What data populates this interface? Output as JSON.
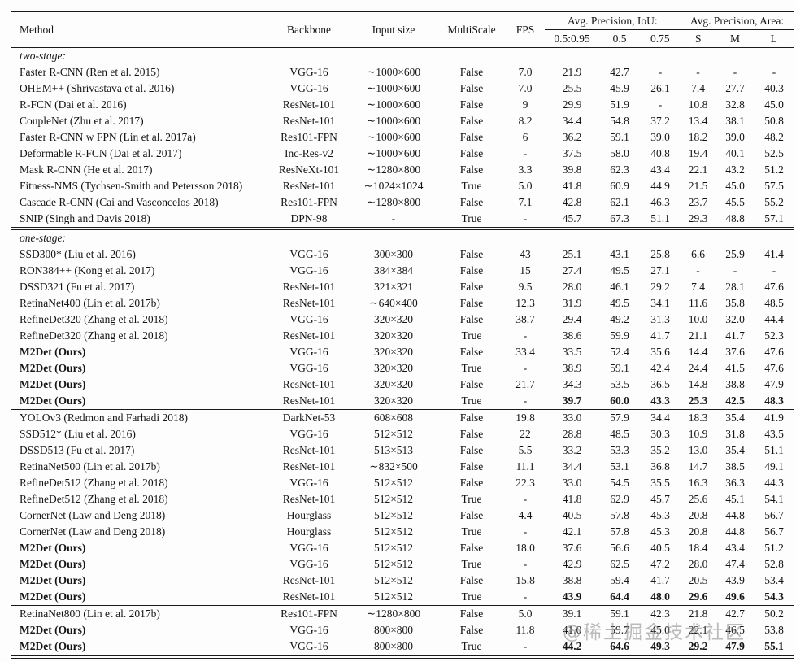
{
  "watermark": {
    "text": "@稀土掘金技术社区"
  },
  "table": {
    "header": {
      "method": "Method",
      "backbone": "Backbone",
      "input_size": "Input size",
      "multiscale": "MultiScale",
      "fps": "FPS",
      "iou_group": "Avg. Precision, IoU:",
      "area_group": "Avg. Precision, Area:",
      "iou_sub": [
        "0.5:0.95",
        "0.5",
        "0.75"
      ],
      "area_sub": [
        "S",
        "M",
        "L"
      ]
    },
    "sections": [
      {
        "label": "two-stage:",
        "divider_after": "double",
        "rows": [
          {
            "method": "Faster R-CNN (Ren et al. 2015)",
            "backbone": "VGG-16",
            "input": "∼1000×600",
            "multiscale": "False",
            "fps": "7.0",
            "ap": "21.9",
            "ap50": "42.7",
            "ap75": "-",
            "aps": "-",
            "apm": "-",
            "apl": "-",
            "bold_method": false,
            "bold_metrics": false
          },
          {
            "method": "OHEM++ (Shrivastava et al. 2016)",
            "backbone": "VGG-16",
            "input": "∼1000×600",
            "multiscale": "False",
            "fps": "7.0",
            "ap": "25.5",
            "ap50": "45.9",
            "ap75": "26.1",
            "aps": "7.4",
            "apm": "27.7",
            "apl": "40.3",
            "bold_method": false,
            "bold_metrics": false
          },
          {
            "method": "R-FCN (Dai et al. 2016)",
            "backbone": "ResNet-101",
            "input": "∼1000×600",
            "multiscale": "False",
            "fps": "9",
            "ap": "29.9",
            "ap50": "51.9",
            "ap75": "-",
            "aps": "10.8",
            "apm": "32.8",
            "apl": "45.0",
            "bold_method": false,
            "bold_metrics": false
          },
          {
            "method": "CoupleNet (Zhu et al. 2017)",
            "backbone": "ResNet-101",
            "input": "∼1000×600",
            "multiscale": "False",
            "fps": "8.2",
            "ap": "34.4",
            "ap50": "54.8",
            "ap75": "37.2",
            "aps": "13.4",
            "apm": "38.1",
            "apl": "50.8",
            "bold_method": false,
            "bold_metrics": false
          },
          {
            "method": "Faster R-CNN w FPN (Lin et al. 2017a)",
            "backbone": "Res101-FPN",
            "input": "∼1000×600",
            "multiscale": "False",
            "fps": "6",
            "ap": "36.2",
            "ap50": "59.1",
            "ap75": "39.0",
            "aps": "18.2",
            "apm": "39.0",
            "apl": "48.2",
            "bold_method": false,
            "bold_metrics": false
          },
          {
            "method": "Deformable R-FCN (Dai et al. 2017)",
            "backbone": "Inc-Res-v2",
            "input": "∼1000×600",
            "multiscale": "False",
            "fps": "-",
            "ap": "37.5",
            "ap50": "58.0",
            "ap75": "40.8",
            "aps": "19.4",
            "apm": "40.1",
            "apl": "52.5",
            "bold_method": false,
            "bold_metrics": false
          },
          {
            "method": "Mask R-CNN (He et al. 2017)",
            "backbone": "ResNeXt-101",
            "input": "∼1280×800",
            "multiscale": "False",
            "fps": "3.3",
            "ap": "39.8",
            "ap50": "62.3",
            "ap75": "43.4",
            "aps": "22.1",
            "apm": "43.2",
            "apl": "51.2",
            "bold_method": false,
            "bold_metrics": false
          },
          {
            "method": "Fitness-NMS (Tychsen-Smith and Petersson 2018)",
            "backbone": "ResNet-101",
            "input": "∼1024×1024",
            "multiscale": "True",
            "fps": "5.0",
            "ap": "41.8",
            "ap50": "60.9",
            "ap75": "44.9",
            "aps": "21.5",
            "apm": "45.0",
            "apl": "57.5",
            "bold_method": false,
            "bold_metrics": false
          },
          {
            "method": "Cascade R-CNN (Cai and Vasconcelos 2018)",
            "backbone": "Res101-FPN",
            "input": "∼1280×800",
            "multiscale": "False",
            "fps": "7.1",
            "ap": "42.8",
            "ap50": "62.1",
            "ap75": "46.3",
            "aps": "23.7",
            "apm": "45.5",
            "apl": "55.2",
            "bold_method": false,
            "bold_metrics": false
          },
          {
            "method": "SNIP (Singh and Davis 2018)",
            "backbone": "DPN-98",
            "input": "-",
            "multiscale": "True",
            "fps": "-",
            "ap": "45.7",
            "ap50": "67.3",
            "ap75": "51.1",
            "aps": "29.3",
            "apm": "48.8",
            "apl": "57.1",
            "bold_method": false,
            "bold_metrics": false
          }
        ]
      },
      {
        "label": "one-stage:",
        "divider_after": "single",
        "rows": [
          {
            "method": "SSD300* (Liu et al. 2016)",
            "backbone": "VGG-16",
            "input": "300×300",
            "multiscale": "False",
            "fps": "43",
            "ap": "25.1",
            "ap50": "43.1",
            "ap75": "25.8",
            "aps": "6.6",
            "apm": "25.9",
            "apl": "41.4",
            "bold_method": false,
            "bold_metrics": false
          },
          {
            "method": "RON384++ (Kong et al. 2017)",
            "backbone": "VGG-16",
            "input": "384×384",
            "multiscale": "False",
            "fps": "15",
            "ap": "27.4",
            "ap50": "49.5",
            "ap75": "27.1",
            "aps": "-",
            "apm": "-",
            "apl": "-",
            "bold_method": false,
            "bold_metrics": false
          },
          {
            "method": "DSSD321 (Fu et al. 2017)",
            "backbone": "ResNet-101",
            "input": "321×321",
            "multiscale": "False",
            "fps": "9.5",
            "ap": "28.0",
            "ap50": "46.1",
            "ap75": "29.2",
            "aps": "7.4",
            "apm": "28.1",
            "apl": "47.6",
            "bold_method": false,
            "bold_metrics": false
          },
          {
            "method": "RetinaNet400 (Lin et al. 2017b)",
            "backbone": "ResNet-101",
            "input": "∼640×400",
            "multiscale": "False",
            "fps": "12.3",
            "ap": "31.9",
            "ap50": "49.5",
            "ap75": "34.1",
            "aps": "11.6",
            "apm": "35.8",
            "apl": "48.5",
            "bold_method": false,
            "bold_metrics": false
          },
          {
            "method": "RefineDet320 (Zhang et al. 2018)",
            "backbone": "VGG-16",
            "input": "320×320",
            "multiscale": "False",
            "fps": "38.7",
            "ap": "29.4",
            "ap50": "49.2",
            "ap75": "31.3",
            "aps": "10.0",
            "apm": "32.0",
            "apl": "44.4",
            "bold_method": false,
            "bold_metrics": false
          },
          {
            "method": "RefineDet320 (Zhang et al. 2018)",
            "backbone": "ResNet-101",
            "input": "320×320",
            "multiscale": "True",
            "fps": "-",
            "ap": "38.6",
            "ap50": "59.9",
            "ap75": "41.7",
            "aps": "21.1",
            "apm": "41.7",
            "apl": "52.3",
            "bold_method": false,
            "bold_metrics": false
          },
          {
            "method": "M2Det (Ours)",
            "backbone": "VGG-16",
            "input": "320×320",
            "multiscale": "False",
            "fps": "33.4",
            "ap": "33.5",
            "ap50": "52.4",
            "ap75": "35.6",
            "aps": "14.4",
            "apm": "37.6",
            "apl": "47.6",
            "bold_method": true,
            "bold_metrics": false
          },
          {
            "method": "M2Det (Ours)",
            "backbone": "VGG-16",
            "input": "320×320",
            "multiscale": "True",
            "fps": "-",
            "ap": "38.9",
            "ap50": "59.1",
            "ap75": "42.4",
            "aps": "24.4",
            "apm": "41.5",
            "apl": "47.6",
            "bold_method": true,
            "bold_metrics": false
          },
          {
            "method": "M2Det (Ours)",
            "backbone": "ResNet-101",
            "input": "320×320",
            "multiscale": "False",
            "fps": "21.7",
            "ap": "34.3",
            "ap50": "53.5",
            "ap75": "36.5",
            "aps": "14.8",
            "apm": "38.8",
            "apl": "47.9",
            "bold_method": true,
            "bold_metrics": false
          },
          {
            "method": "M2Det (Ours)",
            "backbone": "ResNet-101",
            "input": "320×320",
            "multiscale": "True",
            "fps": "-",
            "ap": "39.7",
            "ap50": "60.0",
            "ap75": "43.3",
            "aps": "25.3",
            "apm": "42.5",
            "apl": "48.3",
            "bold_method": true,
            "bold_metrics": true
          }
        ]
      },
      {
        "label": null,
        "divider_after": "single",
        "rows": [
          {
            "method": "YOLOv3 (Redmon and Farhadi 2018)",
            "backbone": "DarkNet-53",
            "input": "608×608",
            "multiscale": "False",
            "fps": "19.8",
            "ap": "33.0",
            "ap50": "57.9",
            "ap75": "34.4",
            "aps": "18.3",
            "apm": "35.4",
            "apl": "41.9",
            "bold_method": false,
            "bold_metrics": false
          },
          {
            "method": "SSD512* (Liu et al. 2016)",
            "backbone": "VGG-16",
            "input": "512×512",
            "multiscale": "False",
            "fps": "22",
            "ap": "28.8",
            "ap50": "48.5",
            "ap75": "30.3",
            "aps": "10.9",
            "apm": "31.8",
            "apl": "43.5",
            "bold_method": false,
            "bold_metrics": false
          },
          {
            "method": "DSSD513 (Fu et al. 2017)",
            "backbone": "ResNet-101",
            "input": "513×513",
            "multiscale": "False",
            "fps": "5.5",
            "ap": "33.2",
            "ap50": "53.3",
            "ap75": "35.2",
            "aps": "13.0",
            "apm": "35.4",
            "apl": "51.1",
            "bold_method": false,
            "bold_metrics": false
          },
          {
            "method": "RetinaNet500 (Lin et al. 2017b)",
            "backbone": "ResNet-101",
            "input": "∼832×500",
            "multiscale": "False",
            "fps": "11.1",
            "ap": "34.4",
            "ap50": "53.1",
            "ap75": "36.8",
            "aps": "14.7",
            "apm": "38.5",
            "apl": "49.1",
            "bold_method": false,
            "bold_metrics": false
          },
          {
            "method": "RefineDet512 (Zhang et al. 2018)",
            "backbone": "VGG-16",
            "input": "512×512",
            "multiscale": "False",
            "fps": "22.3",
            "ap": "33.0",
            "ap50": "54.5",
            "ap75": "35.5",
            "aps": "16.3",
            "apm": "36.3",
            "apl": "44.3",
            "bold_method": false,
            "bold_metrics": false
          },
          {
            "method": "RefineDet512 (Zhang et al. 2018)",
            "backbone": "ResNet-101",
            "input": "512×512",
            "multiscale": "True",
            "fps": "-",
            "ap": "41.8",
            "ap50": "62.9",
            "ap75": "45.7",
            "aps": "25.6",
            "apm": "45.1",
            "apl": "54.1",
            "bold_method": false,
            "bold_metrics": false
          },
          {
            "method": "CornerNet (Law and Deng 2018)",
            "backbone": "Hourglass",
            "input": "512×512",
            "multiscale": "False",
            "fps": "4.4",
            "ap": "40.5",
            "ap50": "57.8",
            "ap75": "45.3",
            "aps": "20.8",
            "apm": "44.8",
            "apl": "56.7",
            "bold_method": false,
            "bold_metrics": false
          },
          {
            "method": "CornerNet (Law and Deng 2018)",
            "backbone": "Hourglass",
            "input": "512×512",
            "multiscale": "True",
            "fps": "-",
            "ap": "42.1",
            "ap50": "57.8",
            "ap75": "45.3",
            "aps": "20.8",
            "apm": "44.8",
            "apl": "56.7",
            "bold_method": false,
            "bold_metrics": false
          },
          {
            "method": "M2Det (Ours)",
            "backbone": "VGG-16",
            "input": "512×512",
            "multiscale": "False",
            "fps": "18.0",
            "ap": "37.6",
            "ap50": "56.6",
            "ap75": "40.5",
            "aps": "18.4",
            "apm": "43.4",
            "apl": "51.2",
            "bold_method": true,
            "bold_metrics": false
          },
          {
            "method": "M2Det (Ours)",
            "backbone": "VGG-16",
            "input": "512×512",
            "multiscale": "True",
            "fps": "-",
            "ap": "42.9",
            "ap50": "62.5",
            "ap75": "47.2",
            "aps": "28.0",
            "apm": "47.4",
            "apl": "52.8",
            "bold_method": true,
            "bold_metrics": false
          },
          {
            "method": "M2Det (Ours)",
            "backbone": "ResNet-101",
            "input": "512×512",
            "multiscale": "False",
            "fps": "15.8",
            "ap": "38.8",
            "ap50": "59.4",
            "ap75": "41.7",
            "aps": "20.5",
            "apm": "43.9",
            "apl": "53.4",
            "bold_method": true,
            "bold_metrics": false
          },
          {
            "method": "M2Det (Ours)",
            "backbone": "ResNet-101",
            "input": "512×512",
            "multiscale": "True",
            "fps": "-",
            "ap": "43.9",
            "ap50": "64.4",
            "ap75": "48.0",
            "aps": "29.6",
            "apm": "49.6",
            "apl": "54.3",
            "bold_method": true,
            "bold_metrics": true
          }
        ]
      },
      {
        "label": null,
        "divider_after": "bottom",
        "rows": [
          {
            "method": "RetinaNet800 (Lin et al. 2017b)",
            "backbone": "Res101-FPN",
            "input": "∼1280×800",
            "multiscale": "False",
            "fps": "5.0",
            "ap": "39.1",
            "ap50": "59.1",
            "ap75": "42.3",
            "aps": "21.8",
            "apm": "42.7",
            "apl": "50.2",
            "bold_method": false,
            "bold_metrics": false
          },
          {
            "method": "M2Det (Ours)",
            "backbone": "VGG-16",
            "input": "800×800",
            "multiscale": "False",
            "fps": "11.8",
            "ap": "41.0",
            "ap50": "59.7",
            "ap75": "45.0",
            "aps": "22.1",
            "apm": "46.5",
            "apl": "53.8",
            "bold_method": true,
            "bold_metrics": false
          },
          {
            "method": "M2Det (Ours)",
            "backbone": "VGG-16",
            "input": "800×800",
            "multiscale": "True",
            "fps": "-",
            "ap": "44.2",
            "ap50": "64.6",
            "ap75": "49.3",
            "aps": "29.2",
            "apm": "47.9",
            "apl": "55.1",
            "bold_method": true,
            "bold_metrics": true
          }
        ]
      }
    ]
  }
}
